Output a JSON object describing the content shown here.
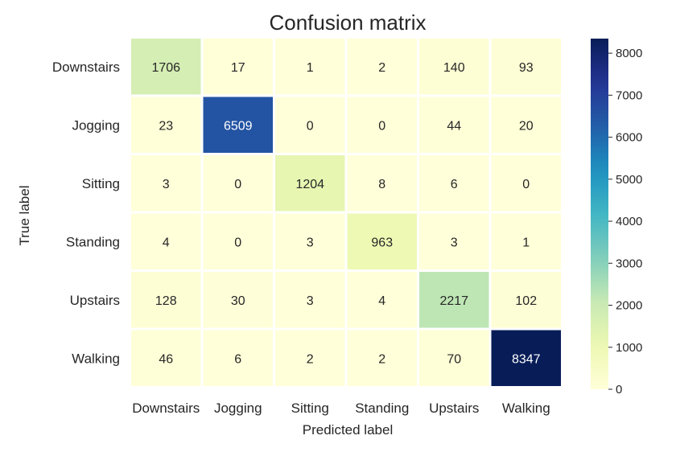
{
  "chart_data": {
    "type": "heatmap",
    "title": "Confusion matrix",
    "xlabel": "Predicted label",
    "ylabel": "True label",
    "x_categories": [
      "Downstairs",
      "Jogging",
      "Sitting",
      "Standing",
      "Upstairs",
      "Walking"
    ],
    "y_categories": [
      "Downstairs",
      "Jogging",
      "Sitting",
      "Standing",
      "Upstairs",
      "Walking"
    ],
    "values": [
      [
        1706,
        17,
        1,
        2,
        140,
        93
      ],
      [
        23,
        6509,
        0,
        0,
        44,
        20
      ],
      [
        3,
        0,
        1204,
        8,
        6,
        0
      ],
      [
        4,
        0,
        3,
        963,
        3,
        1
      ],
      [
        128,
        30,
        3,
        4,
        2217,
        102
      ],
      [
        46,
        6,
        2,
        2,
        70,
        8347
      ]
    ],
    "colormap": "YlGnBu",
    "colorbar": {
      "range": [
        0,
        8347
      ],
      "ticks": [
        0,
        1000,
        2000,
        3000,
        4000,
        5000,
        6000,
        7000,
        8000
      ]
    }
  }
}
